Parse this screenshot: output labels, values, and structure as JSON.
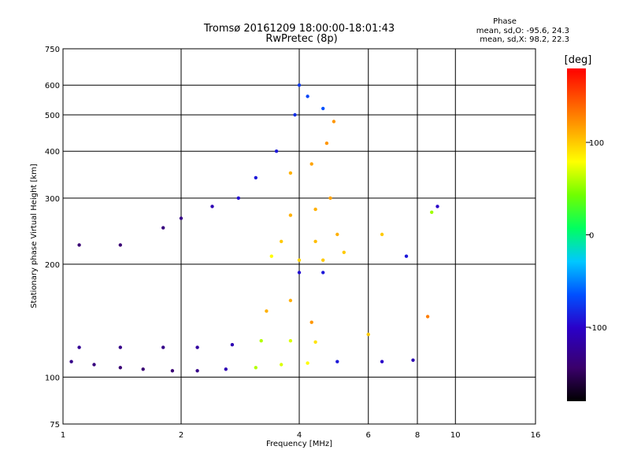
{
  "chart_data": {
    "type": "scatter",
    "title": "Tromsø 20161209 18:00:00-18:01:43",
    "subtitle": "RwPretec (8p)",
    "xlabel": "Frequency [MHz]",
    "ylabel": "Stationary phase Virtual Height [km]",
    "xscale": "log",
    "yscale": "log",
    "xlim": [
      1,
      16
    ],
    "ylim": [
      75,
      750
    ],
    "xticks": [
      1,
      2,
      4,
      6,
      8,
      10,
      16
    ],
    "yticks": [
      75,
      100,
      200,
      300,
      400,
      500,
      600,
      750
    ],
    "grid": true,
    "stats": {
      "heading": "Phase",
      "line_o": "mean, sd,O: -95.6, 24.3",
      "line_x": "mean, sd,X: 98.2, 22.3"
    },
    "colorbar": {
      "label": "[deg]",
      "range": [
        -180,
        180
      ],
      "ticks": [
        100,
        0,
        -100
      ]
    },
    "series": [
      {
        "values": [
          {
            "x": 1.05,
            "y": 110,
            "phase": -130
          },
          {
            "x": 1.2,
            "y": 108,
            "phase": -135
          },
          {
            "x": 1.4,
            "y": 106,
            "phase": -140
          },
          {
            "x": 1.6,
            "y": 105,
            "phase": -140
          },
          {
            "x": 1.9,
            "y": 104,
            "phase": -140
          },
          {
            "x": 2.2,
            "y": 104,
            "phase": -130
          },
          {
            "x": 2.6,
            "y": 105,
            "phase": -110
          },
          {
            "x": 3.1,
            "y": 106,
            "phase": 60
          },
          {
            "x": 3.6,
            "y": 108,
            "phase": 70
          },
          {
            "x": 4.2,
            "y": 109,
            "phase": 80
          },
          {
            "x": 5.0,
            "y": 110,
            "phase": -90
          },
          {
            "x": 6.5,
            "y": 110,
            "phase": -100
          },
          {
            "x": 7.8,
            "y": 111,
            "phase": -110
          },
          {
            "x": 1.1,
            "y": 120,
            "phase": -125
          },
          {
            "x": 1.4,
            "y": 120,
            "phase": -130
          },
          {
            "x": 1.8,
            "y": 120,
            "phase": -130
          },
          {
            "x": 2.2,
            "y": 120,
            "phase": -120
          },
          {
            "x": 2.7,
            "y": 122,
            "phase": -110
          },
          {
            "x": 3.2,
            "y": 125,
            "phase": 60
          },
          {
            "x": 3.8,
            "y": 125,
            "phase": 70
          },
          {
            "x": 4.4,
            "y": 124,
            "phase": 90
          },
          {
            "x": 1.1,
            "y": 225,
            "phase": -140
          },
          {
            "x": 1.4,
            "y": 225,
            "phase": -140
          },
          {
            "x": 1.8,
            "y": 250,
            "phase": -135
          },
          {
            "x": 2.0,
            "y": 265,
            "phase": -130
          },
          {
            "x": 2.4,
            "y": 285,
            "phase": -110
          },
          {
            "x": 2.8,
            "y": 300,
            "phase": -95
          },
          {
            "x": 3.1,
            "y": 340,
            "phase": -90
          },
          {
            "x": 3.5,
            "y": 400,
            "phase": -90
          },
          {
            "x": 3.9,
            "y": 500,
            "phase": -80
          },
          {
            "x": 4.0,
            "y": 600,
            "phase": -75
          },
          {
            "x": 4.2,
            "y": 560,
            "phase": -70
          },
          {
            "x": 4.6,
            "y": 520,
            "phase": -65
          },
          {
            "x": 3.4,
            "y": 210,
            "phase": 80
          },
          {
            "x": 4.0,
            "y": 205,
            "phase": 95
          },
          {
            "x": 4.6,
            "y": 205,
            "phase": 100
          },
          {
            "x": 5.2,
            "y": 215,
            "phase": 100
          },
          {
            "x": 3.6,
            "y": 230,
            "phase": 100
          },
          {
            "x": 4.4,
            "y": 230,
            "phase": 105
          },
          {
            "x": 5.0,
            "y": 240,
            "phase": 110
          },
          {
            "x": 3.8,
            "y": 270,
            "phase": 110
          },
          {
            "x": 4.4,
            "y": 280,
            "phase": 110
          },
          {
            "x": 4.8,
            "y": 300,
            "phase": 115
          },
          {
            "x": 3.8,
            "y": 350,
            "phase": 110
          },
          {
            "x": 4.3,
            "y": 370,
            "phase": 115
          },
          {
            "x": 4.7,
            "y": 420,
            "phase": 120
          },
          {
            "x": 4.9,
            "y": 480,
            "phase": 120
          },
          {
            "x": 4.0,
            "y": 190,
            "phase": -95
          },
          {
            "x": 4.6,
            "y": 190,
            "phase": -90
          },
          {
            "x": 6.5,
            "y": 240,
            "phase": 100
          },
          {
            "x": 7.5,
            "y": 210,
            "phase": -90
          },
          {
            "x": 8.7,
            "y": 275,
            "phase": 55
          },
          {
            "x": 9.0,
            "y": 285,
            "phase": -100
          },
          {
            "x": 3.3,
            "y": 150,
            "phase": 110
          },
          {
            "x": 3.8,
            "y": 160,
            "phase": 110
          },
          {
            "x": 4.3,
            "y": 140,
            "phase": 120
          },
          {
            "x": 6.0,
            "y": 130,
            "phase": 100
          },
          {
            "x": 8.5,
            "y": 145,
            "phase": 130
          }
        ]
      }
    ]
  }
}
